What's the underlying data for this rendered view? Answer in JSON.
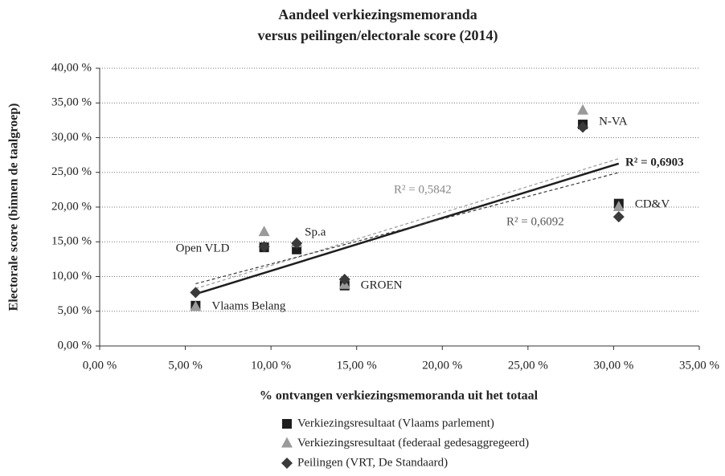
{
  "chart_data": {
    "type": "scatter",
    "title": "Aandeel verkiezingsmemoranda",
    "subtitle": "versus peilingen/electorale score (2014)",
    "x_label": "% ontvangen verkiezingsmemoranda uit het totaal",
    "y_label": "Electorale score (binnen de taalgroep)",
    "x": [
      5.6,
      9.6,
      11.5,
      14.3,
      28.2,
      30.3
    ],
    "point_labels": [
      "Vlaams Belang",
      "Open VLD",
      "Sp.a",
      "GROEN",
      "N-VA",
      "CD&V"
    ],
    "series": [
      {
        "name": "Verkiezingsresultaat (Vlaams parlement)",
        "color": "#1e1e1e",
        "marker": "square",
        "trendline": "solid",
        "r2_label": "R² = 0,6903",
        "values": [
          5.8,
          14.2,
          13.9,
          8.7,
          31.9,
          20.5
        ]
      },
      {
        "name": "Verkiezingsresultaat (federaal gedesaggregeerd)",
        "color": "#9a9a9a",
        "marker": "triangle",
        "trendline": "dashed",
        "r2_label": "R² = 0,5842",
        "values": [
          5.6,
          16.4,
          14.8,
          8.8,
          33.9,
          20.0
        ]
      },
      {
        "name": "Peilingen (VRT, De Standaard)",
        "color": "#3a3a3a",
        "marker": "diamond",
        "trendline": "dashed",
        "r2_label": "R² = 0,6092",
        "values": [
          7.7,
          14.3,
          14.8,
          9.6,
          31.5,
          18.6
        ]
      }
    ],
    "xlim": [
      0,
      35
    ],
    "ylim": [
      0,
      40
    ],
    "xticks": [
      {
        "value": 0,
        "label": "0,00 %"
      },
      {
        "value": 5,
        "label": "5,00 %"
      },
      {
        "value": 10,
        "label": "10,00 %"
      },
      {
        "value": 15,
        "label": "15,00 %"
      },
      {
        "value": 20,
        "label": "20,00 %"
      },
      {
        "value": 25,
        "label": "25,00 %"
      },
      {
        "value": 30,
        "label": "30,00 %"
      },
      {
        "value": 35,
        "label": "35,00 %"
      }
    ],
    "yticks": [
      {
        "value": 0,
        "label": "0,00 %"
      },
      {
        "value": 5,
        "label": "5,00 %"
      },
      {
        "value": 10,
        "label": "10,00 %"
      },
      {
        "value": 15,
        "label": "15,00 %"
      },
      {
        "value": 20,
        "label": "20,00 %"
      },
      {
        "value": 25,
        "label": "25,00 %"
      },
      {
        "value": 30,
        "label": "30,00 %"
      },
      {
        "value": 35,
        "label": "35,00 %"
      },
      {
        "value": 40,
        "label": "40,00 %"
      }
    ],
    "grid": true,
    "legend": "bottom"
  }
}
